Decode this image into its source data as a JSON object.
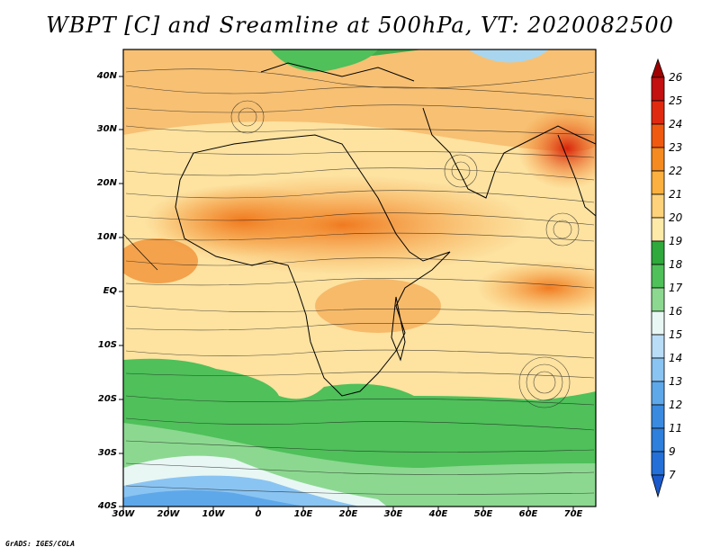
{
  "title": "WBPT [C] and Sreamline at 500hPa, VT: 2020082500",
  "credit": "GrADS: IGES/COLA",
  "map": {
    "lat_labels": [
      "40N",
      "30N",
      "20N",
      "10N",
      "EQ",
      "10S",
      "20S",
      "30S",
      "40S"
    ],
    "lon_labels": [
      "30W",
      "20W",
      "10W",
      "0",
      "10E",
      "20E",
      "30E",
      "40E",
      "50E",
      "60E",
      "70E"
    ]
  },
  "colorbar": {
    "labels": [
      "26",
      "25",
      "24",
      "23",
      "22",
      "21",
      "20",
      "19",
      "18",
      "17",
      "16",
      "15",
      "14",
      "13",
      "12",
      "11",
      "9",
      "7"
    ],
    "colors": [
      "#a00000",
      "#c41010",
      "#e02a10",
      "#f05a10",
      "#f58a20",
      "#fbb040",
      "#fdd27a",
      "#fde9a8",
      "#2fa83c",
      "#4fc05a",
      "#8cd890",
      "#e8f7f4",
      "#b9dcf7",
      "#8ac4f2",
      "#5ea8ea",
      "#3a8be0",
      "#2470d8",
      "#1a5acb"
    ]
  }
}
